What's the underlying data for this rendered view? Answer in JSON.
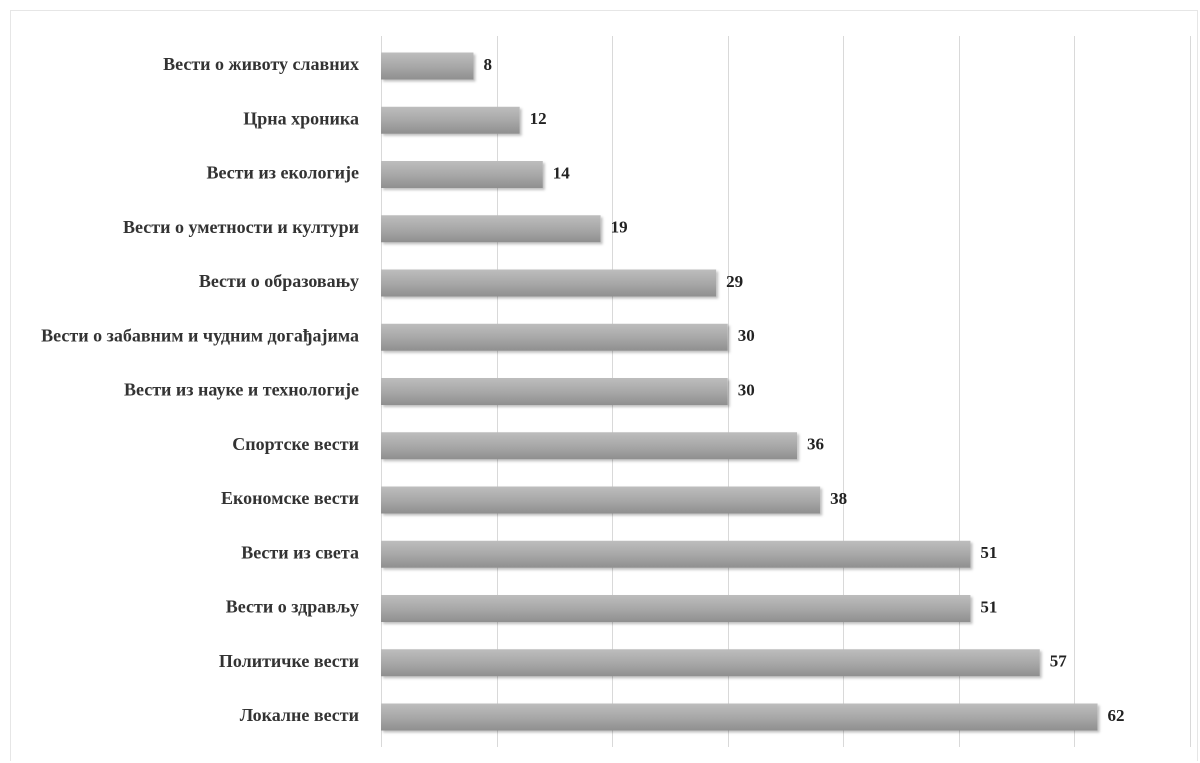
{
  "chart_data": {
    "type": "bar",
    "orientation": "horizontal",
    "categories": [
      "Вести о животу славних",
      "Црна хроника",
      "Вести из екологије",
      "Вести о уметности и култури",
      "Вести о образовању",
      "Вести о забавним и чудним догађајима",
      "Вести из науке и технологије",
      "Спортске вести",
      "Економске вести",
      "Вести из света",
      "Вести о здрављу",
      "Политичке вести",
      "Локалне вести"
    ],
    "values": [
      8,
      12,
      14,
      19,
      29,
      30,
      30,
      36,
      38,
      51,
      51,
      57,
      62
    ],
    "title": "",
    "xlabel": "",
    "ylabel": "",
    "xlim": [
      0,
      70
    ],
    "grid": true,
    "data_labels": true,
    "legend": "none",
    "bar_color": "#a6a6a6"
  }
}
